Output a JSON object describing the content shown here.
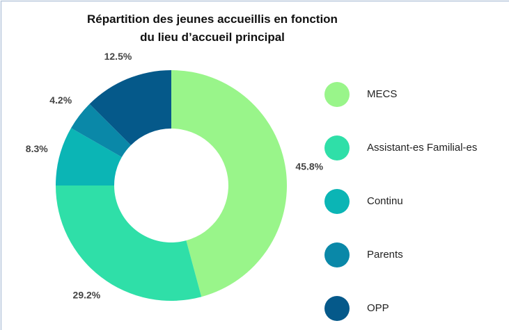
{
  "chart_data": {
    "type": "donut",
    "title": [
      "Répartition des jeunes accueillis en fonction",
      "du lieu d’accueil principal"
    ],
    "categories": [
      "MECS",
      "Assistant-es Familial-es",
      "Continu",
      "Parents",
      "OPP"
    ],
    "values": [
      45.8,
      29.2,
      8.3,
      4.2,
      12.5
    ],
    "value_labels": [
      "45.8%",
      "29.2%",
      "8.3%",
      "4.2%",
      "12.5%"
    ],
    "colors": [
      "#99f58a",
      "#2fdfa8",
      "#0bb5b5",
      "#0a88a8",
      "#05598a"
    ],
    "legend": "right"
  }
}
